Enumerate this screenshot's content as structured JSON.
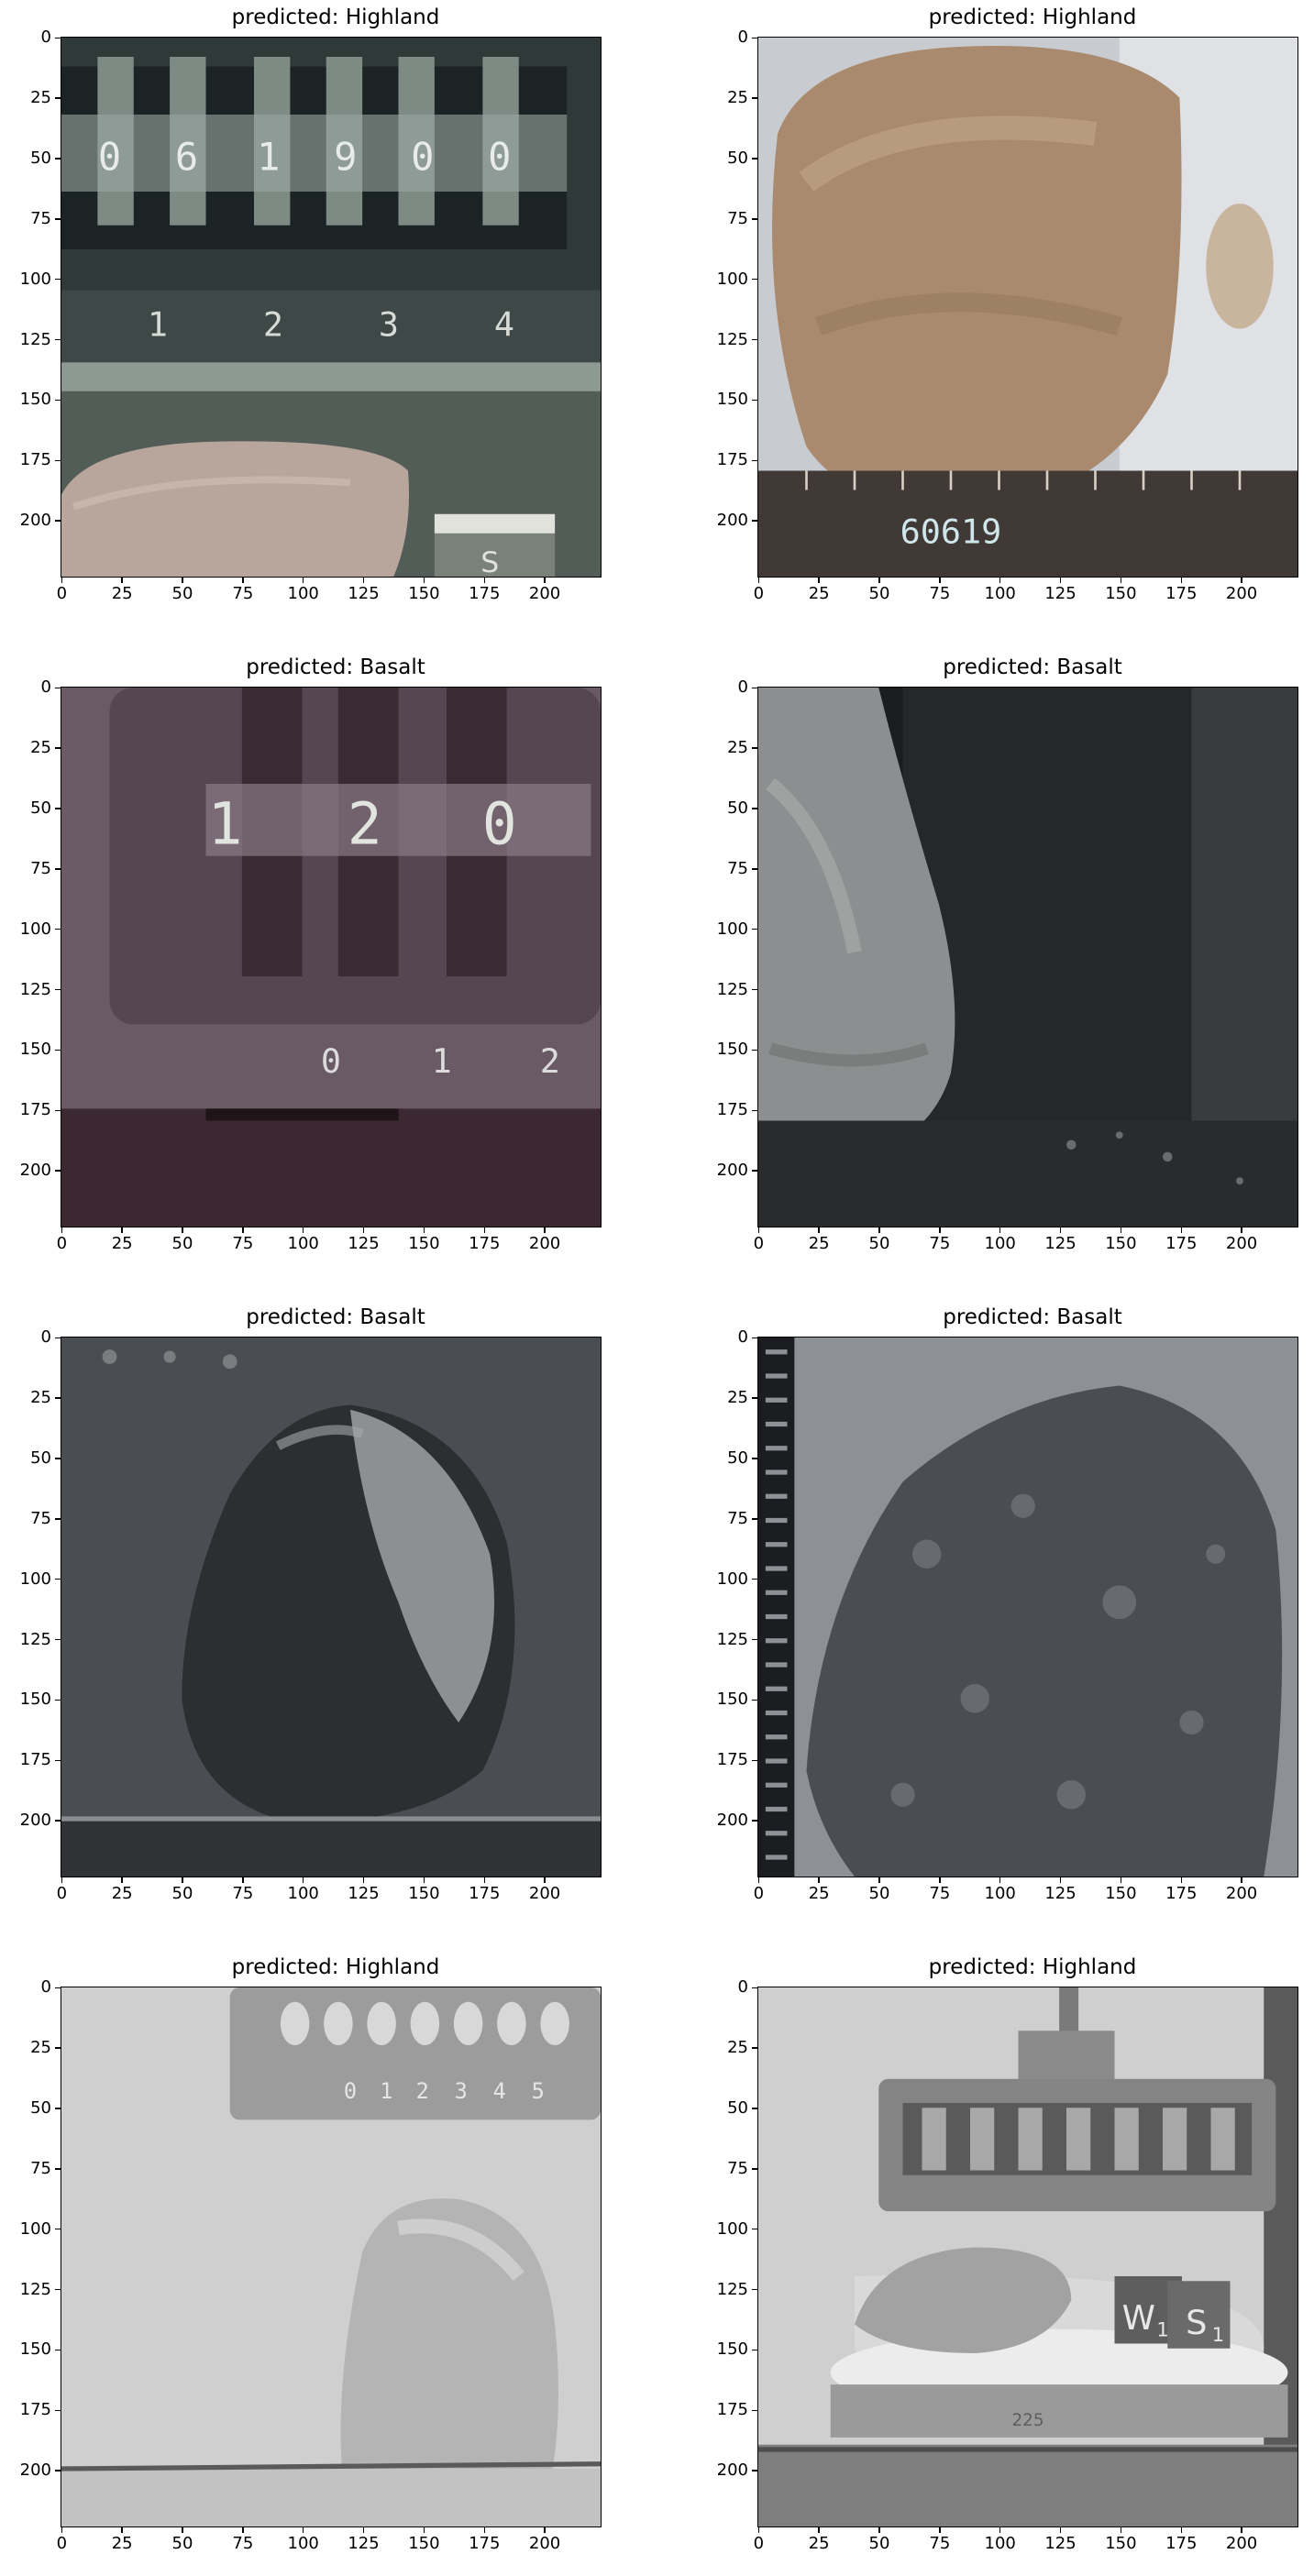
{
  "panels": [
    {
      "title": "predicted: Highland",
      "image": "sample-counter-rock-icon"
    },
    {
      "title": "predicted: Highland",
      "image": "tan-rock-60619-icon"
    },
    {
      "title": "predicted: Basalt",
      "image": "counter-120-icon"
    },
    {
      "title": "predicted: Basalt",
      "image": "gray-rock-edge-icon"
    },
    {
      "title": "predicted: Basalt",
      "image": "dark-rock-icon"
    },
    {
      "title": "predicted: Basalt",
      "image": "dark-granular-rock-icon"
    },
    {
      "title": "predicted: Highland",
      "image": "pale-rock-scale-icon"
    },
    {
      "title": "predicted: Highland",
      "image": "rock-on-stand-ws-icon"
    }
  ],
  "axes": {
    "y_ticks": [
      "0",
      "25",
      "50",
      "75",
      "100",
      "125",
      "150",
      "175",
      "200"
    ],
    "x_ticks": [
      "0",
      "25",
      "50",
      "75",
      "100",
      "125",
      "150",
      "175",
      "200"
    ],
    "extent": [
      0,
      224
    ]
  },
  "image_text": {
    "p0_counter": [
      "0",
      "6",
      "1",
      "9",
      "0",
      "0"
    ],
    "p0_scale": [
      "1",
      "2",
      "3",
      "4"
    ],
    "p0_cube": "S",
    "p1_label": "60619",
    "p2_counter": [
      "1",
      "2",
      "0"
    ],
    "p2_scale": [
      "0",
      "1",
      "2"
    ],
    "p6_scale": [
      "0",
      "1",
      "2",
      "3",
      "4",
      "5"
    ],
    "p7_block": "W",
    "p7_block_sub": "1",
    "p7_block2": "S",
    "p7_block2_sub": "1",
    "p7_stand": "225"
  }
}
